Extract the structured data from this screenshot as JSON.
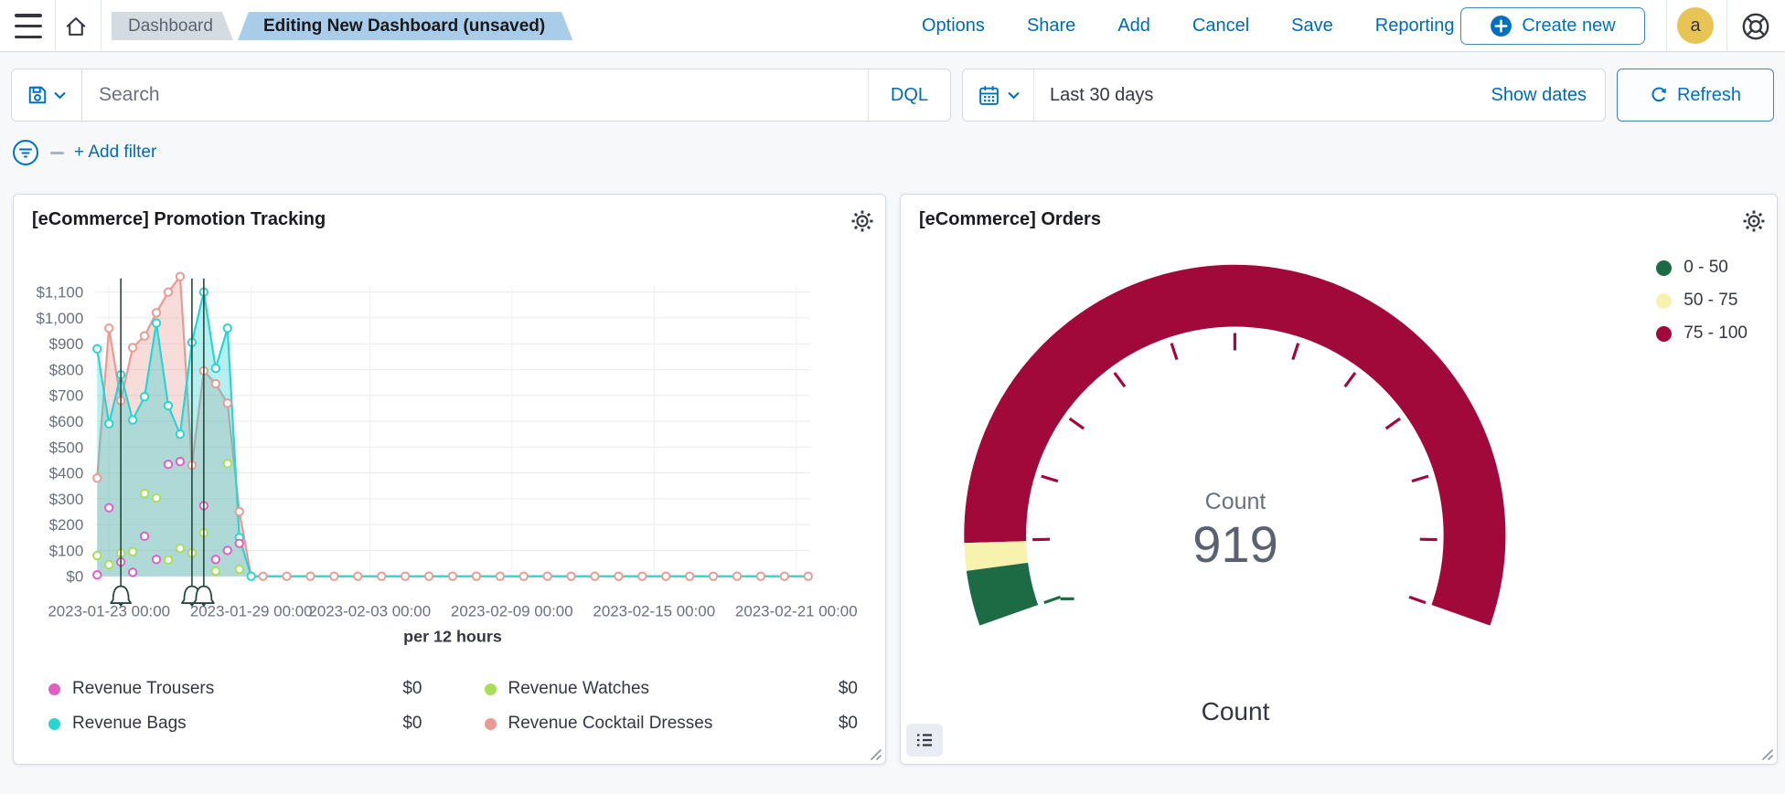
{
  "colors": {
    "primary_blue": "#0071c2",
    "link_blue": "#006bb4",
    "border": "#d3dae6",
    "text_dark": "#1a1c21",
    "text_subdued": "#69707d",
    "breadcrumb_bg": "#d4dce2",
    "breadcrumb_active_bg": "#a9cde9",
    "avatar_bg": "#e8c455",
    "annotation_green": "#25483c"
  },
  "icons": {
    "menu": "hamburger",
    "home": "house-outline",
    "saved_query": "floppy-disk",
    "dropdown": "chevron-down",
    "calendar": "calendar-grid",
    "refresh": "circular-arrow",
    "filter": "filter-lines-in-circle",
    "create_new": "plus-in-circle",
    "help": "life-ring",
    "panel_settings": "gear",
    "legend_toggle": "list-lines",
    "resize": "diagonal-corner",
    "annotation_marker": "bell"
  },
  "topnav": {
    "breadcrumbs": [
      {
        "label": "Dashboard"
      },
      {
        "label": "Editing New Dashboard (unsaved)"
      }
    ],
    "links": [
      "Options",
      "Share",
      "Add",
      "Cancel",
      "Save",
      "Reporting"
    ],
    "create_new_label": "Create new",
    "avatar_initial": "a"
  },
  "querybar": {
    "search_placeholder": "Search",
    "dql_label": "DQL",
    "timeframe": "Last 30 days",
    "show_dates_label": "Show dates",
    "refresh_label": "Refresh"
  },
  "filterbar": {
    "add_filter_label": "+ Add filter"
  },
  "chart_data": [
    {
      "type": "area",
      "title": "[eCommerce] Promotion Tracking",
      "xlabel": "per 12 hours",
      "x_start": "2023-01-22 00:00",
      "x_step_hours": 12,
      "n_points": 61,
      "x_tick_labels": [
        "2023-01-23 00:00",
        "2023-01-29 00:00",
        "2023-02-03 00:00",
        "2023-02-09 00:00",
        "2023-02-15 00:00",
        "2023-02-21 00:00"
      ],
      "x_tick_indices": [
        1,
        13,
        23,
        35,
        47,
        59
      ],
      "y_ticks": [
        "$0",
        "$100",
        "$200",
        "$300",
        "$400",
        "$500",
        "$600",
        "$700",
        "$800",
        "$900",
        "$1,000",
        "$1,100"
      ],
      "y_tick_values": [
        0,
        100,
        200,
        300,
        400,
        500,
        600,
        700,
        800,
        900,
        1000,
        1100
      ],
      "ylim": [
        0,
        1100
      ],
      "series": [
        {
          "name": "Revenue Trousers",
          "color": "#e05fc4",
          "style": "points",
          "values": [
            5,
            265,
            55,
            15,
            155,
            65,
            433,
            444,
            90,
            273,
            65,
            100,
            127,
            0,
            0,
            0,
            0,
            0,
            0,
            0,
            0,
            0,
            0,
            0,
            0,
            0,
            0,
            0,
            0,
            0,
            0,
            0,
            0,
            0,
            0,
            0,
            0,
            0,
            0,
            0,
            0,
            0,
            0,
            0,
            0,
            0,
            0,
            0,
            0,
            0,
            0,
            0,
            0,
            0,
            0,
            0,
            0,
            0,
            0,
            0,
            0
          ]
        },
        {
          "name": "Revenue Bags",
          "color": "#29d4d4",
          "style": "area",
          "values": [
            880,
            590,
            780,
            605,
            695,
            980,
            660,
            550,
            905,
            1100,
            805,
            960,
            150,
            0,
            0,
            0,
            0,
            0,
            0,
            0,
            0,
            0,
            0,
            0,
            0,
            0,
            0,
            0,
            0,
            0,
            0,
            0,
            0,
            0,
            0,
            0,
            0,
            0,
            0,
            0,
            0,
            0,
            0,
            0,
            0,
            0,
            0,
            0,
            0,
            0,
            0,
            0,
            0,
            0,
            0,
            0,
            0,
            0,
            0,
            0,
            0
          ]
        },
        {
          "name": "Revenue Watches",
          "color": "#a9de5a",
          "style": "points",
          "values": [
            80,
            45,
            90,
            95,
            320,
            303,
            63,
            108,
            90,
            168,
            20,
            436,
            27,
            0,
            0,
            0,
            0,
            0,
            0,
            0,
            0,
            0,
            0,
            0,
            0,
            0,
            0,
            0,
            0,
            0,
            0,
            0,
            0,
            0,
            0,
            0,
            0,
            0,
            0,
            0,
            0,
            0,
            0,
            0,
            0,
            0,
            0,
            0,
            0,
            0,
            0,
            0,
            0,
            0,
            0,
            0,
            0,
            0,
            0,
            0,
            0
          ]
        },
        {
          "name": "Revenue Cocktail Dresses",
          "color": "#ea9a92",
          "style": "area",
          "zero_markers": true,
          "values": [
            380,
            960,
            680,
            885,
            930,
            1020,
            1100,
            1160,
            430,
            795,
            745,
            670,
            250,
            0,
            0,
            0,
            0,
            0,
            0,
            0,
            0,
            0,
            0,
            0,
            0,
            0,
            0,
            0,
            0,
            0,
            0,
            0,
            0,
            0,
            0,
            0,
            0,
            0,
            0,
            0,
            0,
            0,
            0,
            0,
            0,
            0,
            0,
            0,
            0,
            0,
            0,
            0,
            0,
            0,
            0,
            0,
            0,
            0,
            0,
            0,
            0
          ]
        }
      ],
      "annotations": {
        "indices": [
          2,
          8,
          9
        ],
        "color": "#25483c",
        "marker": "bell"
      },
      "legend": [
        {
          "label": "Revenue Trousers",
          "value": "$0",
          "color": "#e05fc4"
        },
        {
          "label": "Revenue Bags",
          "value": "$0",
          "color": "#29d4d4"
        },
        {
          "label": "Revenue Watches",
          "value": "$0",
          "color": "#a9de5a"
        },
        {
          "label": "Revenue Cocktail Dresses",
          "value": "$0",
          "color": "#ea9a92"
        }
      ]
    },
    {
      "type": "gauge",
      "title": "[eCommerce] Orders",
      "metric_label": "Count",
      "value": 919,
      "value_display": "919",
      "bottom_label": "Count",
      "bands": [
        {
          "label": "0 - 50",
          "from": 0,
          "to": 50,
          "color": "#1d6b45"
        },
        {
          "label": "50 - 75",
          "from": 50,
          "to": 75,
          "color": "#f7f2ae"
        },
        {
          "label": "75 - 100",
          "from": 75,
          "to": 100,
          "color": "#a2093b"
        }
      ]
    }
  ]
}
